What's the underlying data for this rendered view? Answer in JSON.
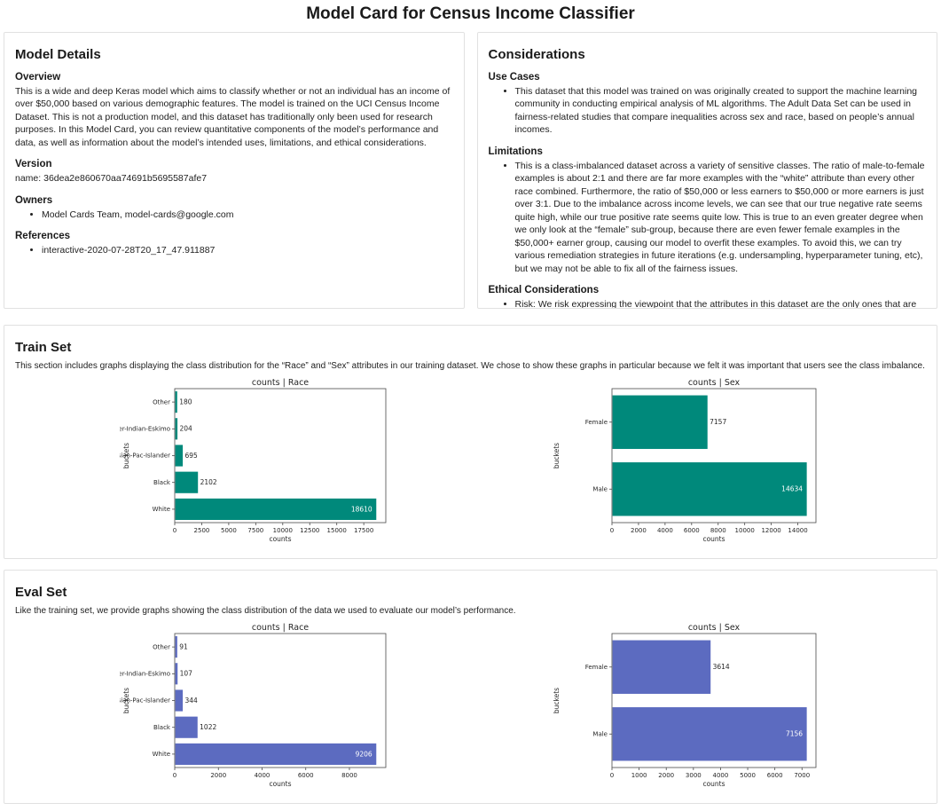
{
  "page_title": "Model Card for Census Income Classifier",
  "model_details": {
    "title": "Model Details",
    "overview": {
      "heading": "Overview",
      "text": "This is a wide and deep Keras model which aims to classify whether or not an individual has an income of over $50,000 based on various demographic features. The model is trained on the UCI Census Income Dataset. This is not a production model, and this dataset has traditionally only been used for research purposes. In this Model Card, you can review quantitative components of the model’s performance and data, as well as information about the model’s intended uses, limitations, and ethical considerations."
    },
    "version": {
      "heading": "Version",
      "text": "name: 36dea2e860670aa74691b5695587afe7"
    },
    "owners": {
      "heading": "Owners",
      "items": [
        "Model Cards Team, model-cards@google.com"
      ]
    },
    "references": {
      "heading": "References",
      "items": [
        "interactive-2020-07-28T20_17_47.911887"
      ]
    }
  },
  "considerations": {
    "title": "Considerations",
    "use_cases": {
      "heading": "Use Cases",
      "items": [
        "This dataset that this model was trained on was originally created to support the machine learning community in conducting empirical analysis of ML algorithms. The Adult Data Set can be used in fairness-related studies that compare inequalities across sex and race, based on people’s annual incomes."
      ]
    },
    "limitations": {
      "heading": "Limitations",
      "items": [
        "This is a class-imbalanced dataset across a variety of sensitive classes. The ratio of male-to-female examples is about 2:1 and there are far more examples with the “white” attribute than every other race combined. Furthermore, the ratio of $50,000 or less earners to $50,000 or more earners is just over 3:1. Due to the imbalance across income levels, we can see that our true negative rate seems quite high, while our true positive rate seems quite low. This is true to an even greater degree when we only look at the “female” sub-group, because there are even fewer female examples in the $50,000+ earner group, causing our model to overfit these examples. To avoid this, we can try various remediation strategies in future iterations (e.g. undersampling, hyperparameter tuning, etc), but we may not be able to fix all of the fairness issues."
      ]
    },
    "ethical": {
      "heading": "Ethical Considerations",
      "items": [
        "Risk: We risk expressing the viewpoint that the attributes in this dataset are the only ones that are predictive of someone’s income, even though we know this is not the case.\nMitigation Strategy: As mentioned, some interventions may need to be performed to address the class imbalances in the dataset."
      ]
    }
  },
  "train_set": {
    "title": "Train Set",
    "description": "This section includes graphs displaying the class distribution for the “Race” and “Sex” attributes in our training dataset. We chose to show these graphs in particular because we felt it was important that users see the class imbalance."
  },
  "eval_set": {
    "title": "Eval Set",
    "description": "Like the training set, we provide graphs showing the class distribution of the data we used to evaluate our model’s performance."
  },
  "chart_data": [
    {
      "id": "train-race",
      "group": "train",
      "type": "bar",
      "orientation": "horizontal",
      "title": "counts | Race",
      "xlabel": "counts",
      "ylabel": "buckets",
      "category_order": "top-to-bottom",
      "categories": [
        "Other",
        "Amer-Indian-Eskimo",
        "Asian-Pac-Islander",
        "Black",
        "White"
      ],
      "values": [
        180,
        204,
        695,
        2102,
        18610
      ],
      "xticks": [
        0,
        2500,
        5000,
        7500,
        10000,
        12500,
        15000,
        17500
      ],
      "xlim": [
        0,
        19540
      ],
      "bar_color": "#00897b",
      "inside_label_color": "#ffffff",
      "outside_label_color": "#262626",
      "layout": {
        "margin_left": 62,
        "grid": false
      }
    },
    {
      "id": "train-sex",
      "group": "train",
      "type": "bar",
      "orientation": "horizontal",
      "title": "counts | Sex",
      "xlabel": "counts",
      "ylabel": "buckets",
      "category_order": "top-to-bottom",
      "categories": [
        "Female",
        "Male"
      ],
      "values": [
        7157,
        14634
      ],
      "xticks": [
        0,
        2000,
        4000,
        6000,
        8000,
        10000,
        12000,
        14000
      ],
      "xlim": [
        0,
        15366
      ],
      "bar_color": "#00897b",
      "inside_label_color": "#ffffff",
      "outside_label_color": "#262626",
      "layout": {
        "margin_left": 70,
        "grid": false
      }
    },
    {
      "id": "eval-race",
      "group": "eval",
      "type": "bar",
      "orientation": "horizontal",
      "title": "counts | Race",
      "xlabel": "counts",
      "ylabel": "buckets",
      "category_order": "top-to-bottom",
      "categories": [
        "Other",
        "Amer-Indian-Eskimo",
        "Asian-Pac-Islander",
        "Black",
        "White"
      ],
      "values": [
        91,
        107,
        344,
        1022,
        9206
      ],
      "xticks": [
        0,
        2000,
        4000,
        6000,
        8000
      ],
      "xlim": [
        0,
        9666
      ],
      "bar_color": "#5c6bc0",
      "inside_label_color": "#ffffff",
      "outside_label_color": "#262626",
      "layout": {
        "margin_left": 62,
        "grid": false
      }
    },
    {
      "id": "eval-sex",
      "group": "eval",
      "type": "bar",
      "orientation": "horizontal",
      "title": "counts | Sex",
      "xlabel": "counts",
      "ylabel": "buckets",
      "category_order": "top-to-bottom",
      "categories": [
        "Female",
        "Male"
      ],
      "values": [
        3614,
        7156
      ],
      "xticks": [
        0,
        1000,
        2000,
        3000,
        4000,
        5000,
        6000,
        7000
      ],
      "xlim": [
        0,
        7514
      ],
      "bar_color": "#5c6bc0",
      "inside_label_color": "#ffffff",
      "outside_label_color": "#262626",
      "layout": {
        "margin_left": 70,
        "grid": false
      }
    }
  ]
}
